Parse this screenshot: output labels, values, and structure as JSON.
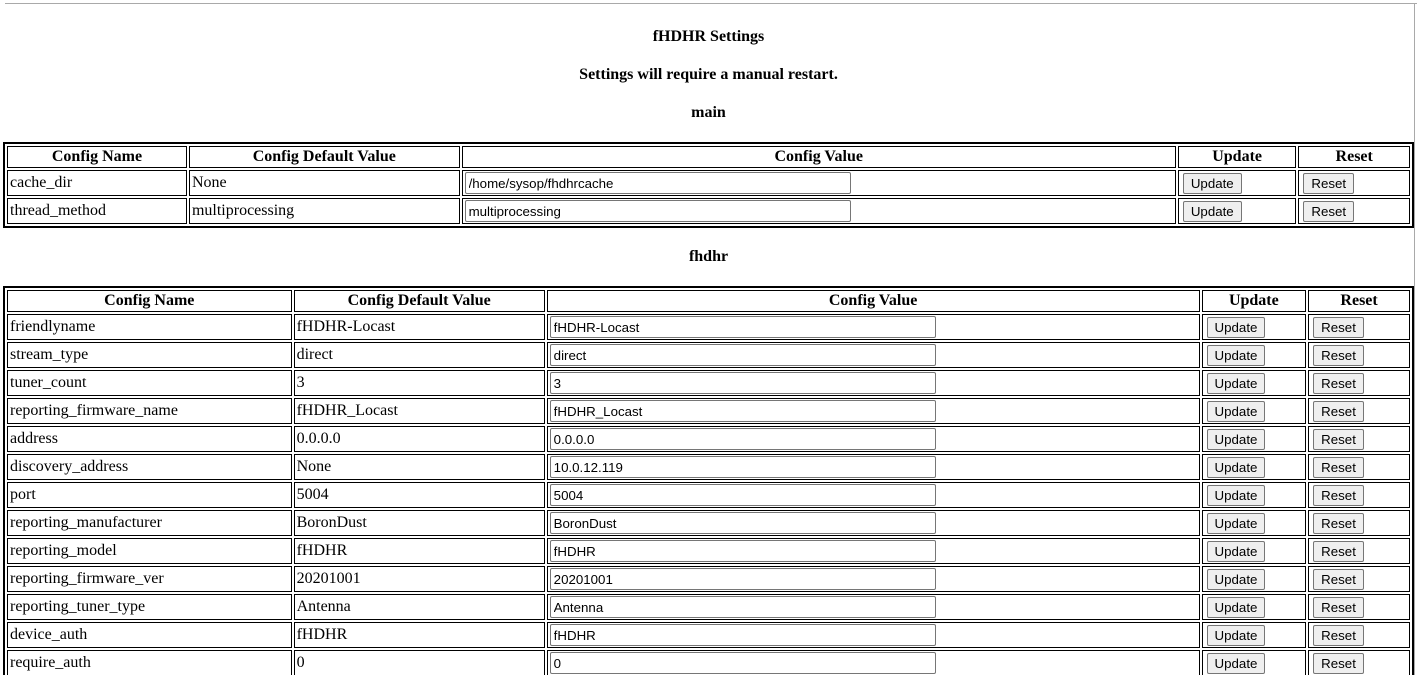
{
  "page": {
    "title": "fHDHR Settings",
    "subtitle": "Settings will require a manual restart."
  },
  "columns": {
    "name": "Config Name",
    "default": "Config Default Value",
    "value": "Config Value",
    "update": "Update",
    "reset": "Reset"
  },
  "buttons": {
    "update": "Update",
    "reset": "Reset"
  },
  "sections": [
    {
      "heading": "main",
      "rows": [
        {
          "name": "cache_dir",
          "default": "None",
          "value": "/home/sysop/fhdhrcache"
        },
        {
          "name": "thread_method",
          "default": "multiprocessing",
          "value": "multiprocessing"
        }
      ]
    },
    {
      "heading": "fhdhr",
      "rows": [
        {
          "name": "friendlyname",
          "default": "fHDHR-Locast",
          "value": "fHDHR-Locast"
        },
        {
          "name": "stream_type",
          "default": "direct",
          "value": "direct"
        },
        {
          "name": "tuner_count",
          "default": "3",
          "value": "3"
        },
        {
          "name": "reporting_firmware_name",
          "default": "fHDHR_Locast",
          "value": "fHDHR_Locast"
        },
        {
          "name": "address",
          "default": "0.0.0.0",
          "value": "0.0.0.0"
        },
        {
          "name": "discovery_address",
          "default": "None",
          "value": "10.0.12.119"
        },
        {
          "name": "port",
          "default": "5004",
          "value": "5004"
        },
        {
          "name": "reporting_manufacturer",
          "default": "BoronDust",
          "value": "BoronDust"
        },
        {
          "name": "reporting_model",
          "default": "fHDHR",
          "value": "fHDHR"
        },
        {
          "name": "reporting_firmware_ver",
          "default": "20201001",
          "value": "20201001"
        },
        {
          "name": "reporting_tuner_type",
          "default": "Antenna",
          "value": "Antenna"
        },
        {
          "name": "device_auth",
          "default": "fHDHR",
          "value": "fHDHR"
        },
        {
          "name": "require_auth",
          "default": "0",
          "value": "0"
        }
      ]
    }
  ]
}
